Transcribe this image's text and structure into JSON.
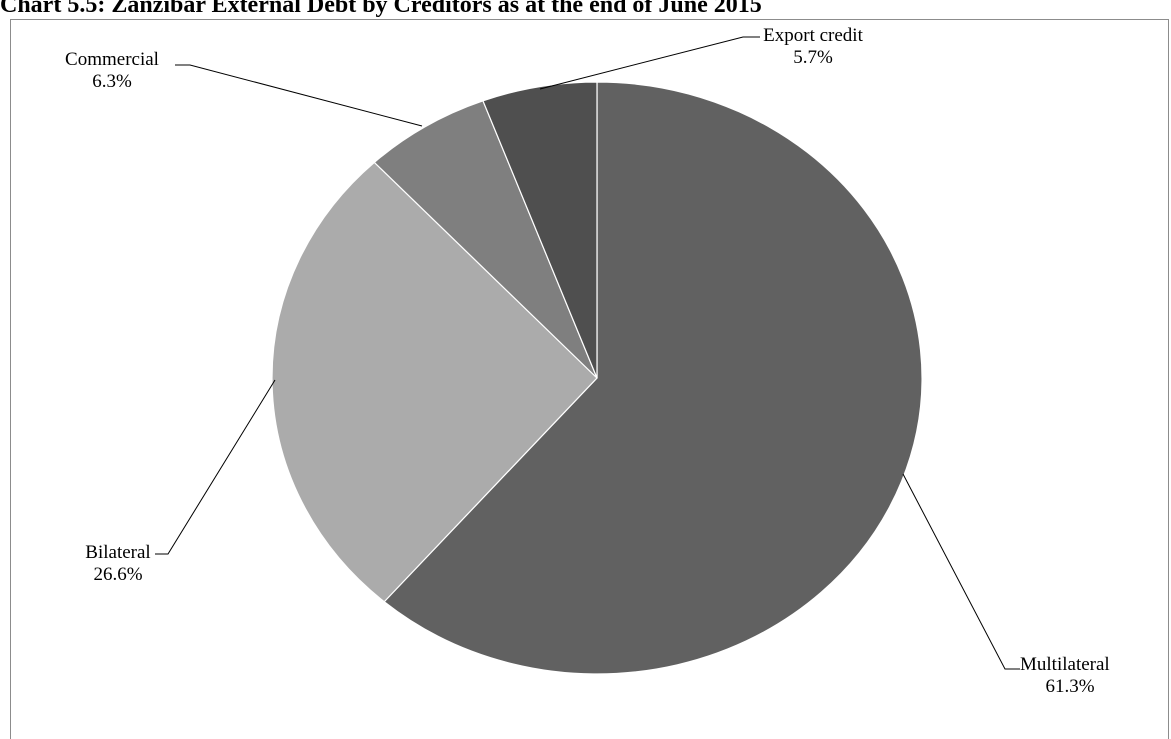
{
  "chart_title": "Chart 5.5: Zanzibar External Debt by Creditors as at the end of June 2015",
  "chart_data": {
    "type": "pie",
    "title": "Chart 5.5: Zanzibar External Debt by Creditors as at the end of June 2015",
    "slices": [
      {
        "name": "Multilateral",
        "label": "61.3%",
        "value": 61.3,
        "color": "#616161"
      },
      {
        "name": "Bilateral",
        "label": "26.6%",
        "value": 26.6,
        "color": "#ababab"
      },
      {
        "name": "Commercial",
        "label": "6.3%",
        "value": 6.3,
        "color": "#7f7f7f"
      },
      {
        "name": "Export credit",
        "label": "5.7%",
        "value": 5.7,
        "color": "#4f4f4f"
      }
    ],
    "start_angle": "12 o'clock",
    "direction": "clockwise",
    "legend": "none",
    "data_labels": "outside with leader lines"
  }
}
